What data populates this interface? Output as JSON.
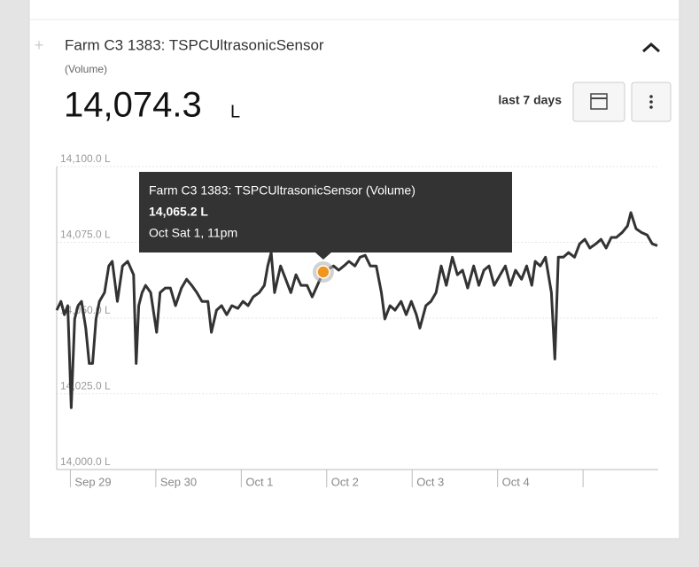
{
  "header": {
    "title": "Farm C3 1383: TSPCUltrasonicSensor",
    "subtitle": "(Volume)",
    "current_value": "14,074.3",
    "unit": "L",
    "range_label": "last 7 days"
  },
  "chart_data": {
    "type": "line",
    "x": [
      -0.16,
      -0.11,
      -0.07,
      -0.03,
      0.01,
      0.05,
      0.09,
      0.13,
      0.18,
      0.22,
      0.26,
      0.3,
      0.34,
      0.4,
      0.45,
      0.49,
      0.55,
      0.61,
      0.67,
      0.74,
      0.77,
      0.8,
      0.84,
      0.88,
      0.94,
      1.01,
      1.05,
      1.11,
      1.17,
      1.23,
      1.3,
      1.36,
      1.42,
      1.48,
      1.54,
      1.61,
      1.65,
      1.71,
      1.77,
      1.83,
      1.89,
      1.96,
      2.02,
      2.08,
      2.14,
      2.21,
      2.27,
      2.31,
      2.35,
      2.39,
      2.46,
      2.52,
      2.58,
      2.64,
      2.7,
      2.77,
      2.83,
      2.89,
      2.96,
      3.08,
      3.14,
      3.2,
      3.26,
      3.33,
      3.39,
      3.45,
      3.51,
      3.58,
      3.64,
      3.68,
      3.74,
      3.8,
      3.87,
      3.93,
      3.99,
      4.05,
      4.09,
      4.16,
      4.22,
      4.28,
      4.34,
      4.4,
      4.47,
      4.53,
      4.59,
      4.65,
      4.72,
      4.78,
      4.84,
      4.9,
      4.96,
      5.03,
      5.09,
      5.15,
      5.21,
      5.28,
      5.34,
      5.4,
      5.44,
      5.5,
      5.56,
      5.63,
      5.67,
      5.71,
      5.77,
      5.83,
      5.9,
      5.96,
      6.02,
      6.08,
      6.15,
      6.21,
      6.27,
      6.33,
      6.39,
      6.46,
      6.52,
      6.56,
      6.62,
      6.68,
      6.75,
      6.81,
      6.87
    ],
    "series": [
      {
        "color": "#333333",
        "values": [
          14052.6,
          14055.5,
          14051.1,
          14054.1,
          14020.4,
          14049.7,
          14054.1,
          14055.5,
          14046.7,
          14035.0,
          14035.0,
          14049.7,
          14055.5,
          14058.4,
          14067.2,
          14068.7,
          14055.5,
          14067.2,
          14068.7,
          14064.3,
          14035.0,
          14054.1,
          14058.4,
          14060.8,
          14058.4,
          14045.3,
          14058.4,
          14059.9,
          14059.9,
          14054.1,
          14059.9,
          14062.8,
          14060.8,
          14058.4,
          14055.5,
          14055.5,
          14045.3,
          14052.6,
          14054.1,
          14051.1,
          14054.1,
          14053.2,
          14055.5,
          14054.1,
          14057.0,
          14058.4,
          14060.8,
          14067.2,
          14071.6,
          14058.4,
          14067.2,
          14062.8,
          14058.4,
          14064.3,
          14060.8,
          14060.8,
          14057.0,
          14060.8,
          14065.2,
          14067.2,
          14065.8,
          14067.2,
          14068.7,
          14067.2,
          14070.1,
          14070.7,
          14067.2,
          14067.2,
          14058.4,
          14049.7,
          14054.1,
          14052.6,
          14055.5,
          14051.1,
          14055.5,
          14051.1,
          14046.7,
          14054.1,
          14055.5,
          14058.4,
          14067.2,
          14060.8,
          14070.1,
          14064.3,
          14065.8,
          14059.9,
          14067.2,
          14060.8,
          14065.8,
          14067.2,
          14060.8,
          14064.3,
          14067.2,
          14060.8,
          14065.8,
          14062.8,
          14067.2,
          14060.8,
          14068.7,
          14067.2,
          14070.1,
          14058.4,
          14036.5,
          14070.1,
          14070.1,
          14071.6,
          14070.1,
          14074.5,
          14076.0,
          14073.1,
          14074.5,
          14076.0,
          14073.1,
          14076.6,
          14076.6,
          14078.3,
          14080.4,
          14084.8,
          14079.5,
          14078.3,
          14077.4,
          14074.5,
          14073.9
        ]
      }
    ],
    "xlim": [
      -0.16,
      6.88
    ],
    "xticks": [
      {
        "value": 0,
        "label": "Sep 29"
      },
      {
        "value": 1,
        "label": "Sep 30"
      },
      {
        "value": 2,
        "label": "Oct 1"
      },
      {
        "value": 3,
        "label": "Oct 2"
      },
      {
        "value": 4,
        "label": "Oct 3"
      },
      {
        "value": 5,
        "label": "Oct 4"
      },
      {
        "value": 6,
        "label": null
      }
    ],
    "ylim": [
      14000,
      14100
    ],
    "yticks": [
      {
        "value": 14000,
        "label": "14,000.0 L"
      },
      {
        "value": 14025,
        "label": "14,025.0 L"
      },
      {
        "value": 14050,
        "label": "14,050.0 L"
      },
      {
        "value": 14075,
        "label": "14,075.0 L"
      },
      {
        "value": 14100,
        "label": "14,100.0 L"
      }
    ],
    "grid": true,
    "tooltip": {
      "title": "Farm C3 1383: TSPCUltrasonicSensor (Volume)",
      "value": 14065.2,
      "value_label": "14,065.2 L",
      "time": "Oct Sat 1, 11pm"
    }
  }
}
